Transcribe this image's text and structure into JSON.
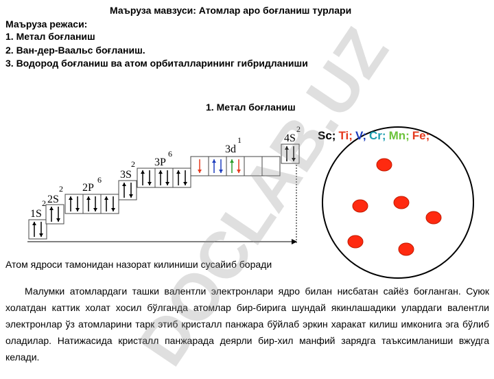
{
  "header": {
    "title": "Маъруза мавзуси: Атомлар аро боғланиш турлари"
  },
  "plan": {
    "heading": "Маъруза режаси:",
    "items": [
      "1. Метал боғланиш",
      "2. Ван-дер-Ваальс боғланиш.",
      "3. Водород боғланиш ва атом орбиталларининг гибридланиши"
    ]
  },
  "section": {
    "title": "1. Метал боғланиш"
  },
  "orbitals": [
    {
      "label": "1S",
      "electrons": "2"
    },
    {
      "label": "2S",
      "electrons": "2"
    },
    {
      "label": "2P",
      "electrons": "6"
    },
    {
      "label": "3S",
      "electrons": "2"
    },
    {
      "label": "3P",
      "electrons": "6"
    },
    {
      "label": "3d",
      "electrons": "1"
    },
    {
      "label": "4S",
      "electrons": "2"
    }
  ],
  "elements": [
    {
      "label": "Sc;",
      "color": "#000000"
    },
    {
      "label": "Ti;",
      "color": "#e53a1e"
    },
    {
      "label": "V;",
      "color": "#1f3fbf"
    },
    {
      "label": "Cr;",
      "color": "#1e9fb0"
    },
    {
      "label": "Mn;",
      "color": "#6cc33a"
    },
    {
      "label": "Fe;",
      "color": "#e53a1e"
    }
  ],
  "caption": "Атом ядроси тамонидан назорат килиниши сусайиб боради",
  "paragraph": "Малумки атомлардаги ташки валентли электронлари ядро билан нисбатан сайёз боғланган. Суюк холатдан каттик холат хосил бўлганда атомлар бир-бирига шундай якинлашадики улардаги валентли электронлар ўз атомларини тарк этиб кристалл панжара бўйлаб эркин харакат килиш имконига эга бўлиб оладилар. Натижасида кристалл панжарада деярли бир-хил манфий зарядга таъксимланиши вжудга келади.",
  "watermark": "DOCLAB.UZ"
}
